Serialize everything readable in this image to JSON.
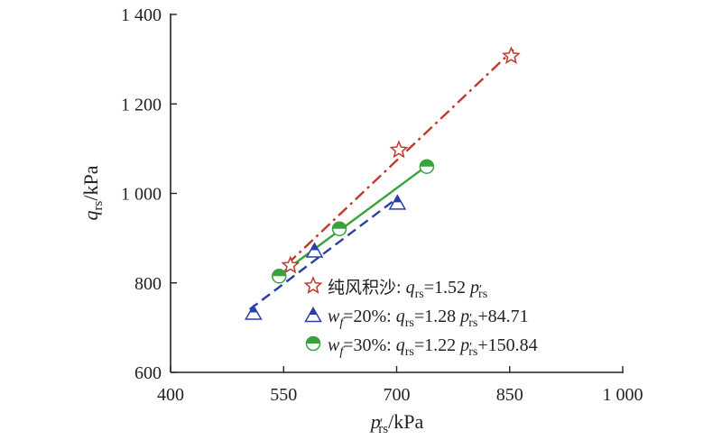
{
  "chart_data": {
    "type": "scatter",
    "xlabel": {
      "main": "p",
      "prime": "′",
      "sub": "rs",
      "unit": "/kPa"
    },
    "ylabel": {
      "main": "q",
      "sub": "rs",
      "unit": "/kPa"
    },
    "xlim": [
      400,
      1000
    ],
    "ylim": [
      600,
      1400
    ],
    "x_ticks": [
      400,
      550,
      700,
      850,
      1000
    ],
    "x_tick_labels": [
      "400",
      "550",
      "700",
      "850",
      "1 000"
    ],
    "y_ticks": [
      600,
      800,
      1000,
      1200,
      1400
    ],
    "y_tick_labels": [
      "600",
      "800",
      "1 000",
      "1 200",
      "1 400"
    ],
    "grid": false,
    "legend_position": "bottom-right",
    "series": [
      {
        "name": "纯风积沙",
        "marker": "star",
        "color": "#c0392b",
        "line_style": "dash-dot",
        "equation": {
          "lhs": "q",
          "lhs_sub": "rs",
          "text": "=1.52 ",
          "var": "p",
          "var_prime": "′",
          "var_sub": "rs",
          "suffix": ""
        },
        "points": [
          {
            "x": 559,
            "y": 839
          },
          {
            "x": 703,
            "y": 1097
          },
          {
            "x": 852,
            "y": 1307
          }
        ],
        "fit_x": [
          555,
          855
        ]
      },
      {
        "name": "w_f=20%",
        "label_var": "w",
        "label_sub": "f",
        "label_rest": "=20%: ",
        "marker": "triangle",
        "color": "#2a3fa6",
        "line_style": "dash",
        "equation": {
          "lhs": "q",
          "lhs_sub": "rs",
          "text": "=1.28 ",
          "var": "p",
          "var_prime": "′",
          "var_sub": "rs",
          "suffix": "+84.71"
        },
        "points": [
          {
            "x": 510,
            "y": 734
          },
          {
            "x": 591,
            "y": 873
          },
          {
            "x": 701,
            "y": 980
          }
        ],
        "fit_x": [
          505,
          703
        ]
      },
      {
        "name": "w_f=30%",
        "label_var": "w",
        "label_sub": "f",
        "label_rest": "=30%: ",
        "marker": "circle-half",
        "color": "#3aa23a",
        "line_style": "solid",
        "equation": {
          "lhs": "q",
          "lhs_sub": "rs",
          "text": "=1.22 ",
          "var": "p",
          "var_prime": "′",
          "var_sub": "rs",
          "suffix": "+150.84"
        },
        "points": [
          {
            "x": 544,
            "y": 815
          },
          {
            "x": 624,
            "y": 921
          },
          {
            "x": 740,
            "y": 1060
          }
        ],
        "fit_x": [
          544,
          740
        ]
      }
    ]
  }
}
